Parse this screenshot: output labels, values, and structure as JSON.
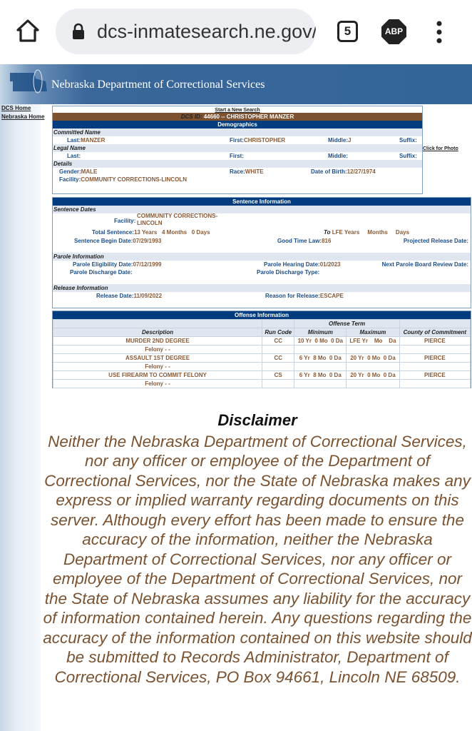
{
  "browser": {
    "url": "dcs-inmatesearch.ne.gov/",
    "tab_count": "5",
    "adblock_label": "ABP"
  },
  "banner": {
    "title": "Nebraska Department of Correctional Services"
  },
  "sidebar": {
    "items": [
      {
        "label": "DCS Home"
      },
      {
        "label": "Nebraska Home"
      }
    ]
  },
  "demographics": {
    "new_search": "Start a New Search",
    "id_label": "DCS ID:",
    "id_value": "44660 -- CHRISTOPHER MANZER",
    "header": "Demographics",
    "click_photo": "Click for Photo",
    "committed_name": {
      "heading": "Committed Name",
      "last_label": "Last:",
      "last": "MANZER",
      "first_label": "First:",
      "first": "CHRISTOPHER",
      "middle_label": "Middle:",
      "middle": "J",
      "suffix_label": "Suffix:",
      "suffix": ""
    },
    "legal_name": {
      "heading": "Legal Name",
      "last_label": "Last:",
      "first_label": "First:",
      "middle_label": "Middle:",
      "suffix_label": "Suffix:"
    },
    "details": {
      "heading": "Details",
      "gender_label": "Gender:",
      "gender": "MALE",
      "race_label": "Race:",
      "race": "WHITE",
      "dob_label": "Date of Birth:",
      "dob": "12/27/1974",
      "facility_label": "Facility:",
      "facility": "COMMUNITY CORRECTIONS-LINCOLN"
    }
  },
  "sentence": {
    "header": "Sentence Information",
    "dates_heading": "Sentence Dates",
    "facility_label": "Facility:",
    "facility_line1": "COMMUNITY CORRECTIONS-",
    "facility_line2": "LINCOLN",
    "total_label": "Total Sentence:",
    "total": "13 Years   4 Months   0 Days",
    "to_label": "To",
    "to_value": "LFE Years     Months     Days",
    "begin_label": "Sentence Begin Date:",
    "begin": "07/29/1993",
    "good_time_label": "Good Time Law:",
    "good_time": "816",
    "projected_label": "Projected Release Date:",
    "parole_heading": "Parole Information",
    "parole_elig_label": "Parole Eligibility Date:",
    "parole_elig": "07/12/1999",
    "parole_hearing_label": "Parole Hearing Date:",
    "parole_hearing": "01/2023",
    "next_review_label": "Next Parole Board Review Date:",
    "parole_discharge_label": "Parole Discharge Date:",
    "parole_discharge_type_label": "Parole Discharge Type:",
    "release_heading": "Release Information",
    "release_date_label": "Release Date:",
    "release_date": "11/09/2022",
    "release_reason_label": "Reason for Release:",
    "release_reason": "ESCAPE"
  },
  "offense": {
    "header": "Offense Information",
    "term_header": "Offense Term",
    "columns": [
      "Description",
      "Run Code",
      "Minimum",
      "Maximum",
      "County of Commitment"
    ],
    "rows": [
      {
        "description": "MURDER 2ND DEGREE",
        "class": "Felony - -",
        "run_code": "CC",
        "minimum": "10 Yr  0 Mo  0 Da",
        "maximum": "LFE Yr    Mo    Da",
        "county": "PIERCE"
      },
      {
        "description": "ASSAULT 1ST DEGREE",
        "class": "Felony - -",
        "run_code": "CC",
        "minimum": "6 Yr  8 Mo  0 Da",
        "maximum": "20 Yr  0 Mo  0 Da",
        "county": "PIERCE"
      },
      {
        "description": "USE FIREARM TO COMMIT FELONY",
        "class": "Felony - -",
        "run_code": "CS",
        "minimum": "6 Yr  8 Mo  0 Da",
        "maximum": "20 Yr  0 Mo  0 Da",
        "county": "PIERCE"
      }
    ]
  },
  "disclaimer": {
    "title": "Disclaimer",
    "text": "Neither the Nebraska Department of Correctional Services, nor any officer or employee of the Department of Correctional Services, nor the State of Nebraska makes any express or implied warranty regarding documents on this server. Although every effort has been made to ensure the accuracy of the information, neither the Nebraska Department of Correctional Services, nor any officer or employee of the Department of Correctional Services, nor the State of Nebraska assumes any liability for the accuracy of information contained herein. Any questions regarding the accuracy of the information contained on this website should be submitted to Records Administrator, Department of Correctional Services, PO Box 94661, Lincoln NE 68509."
  }
}
